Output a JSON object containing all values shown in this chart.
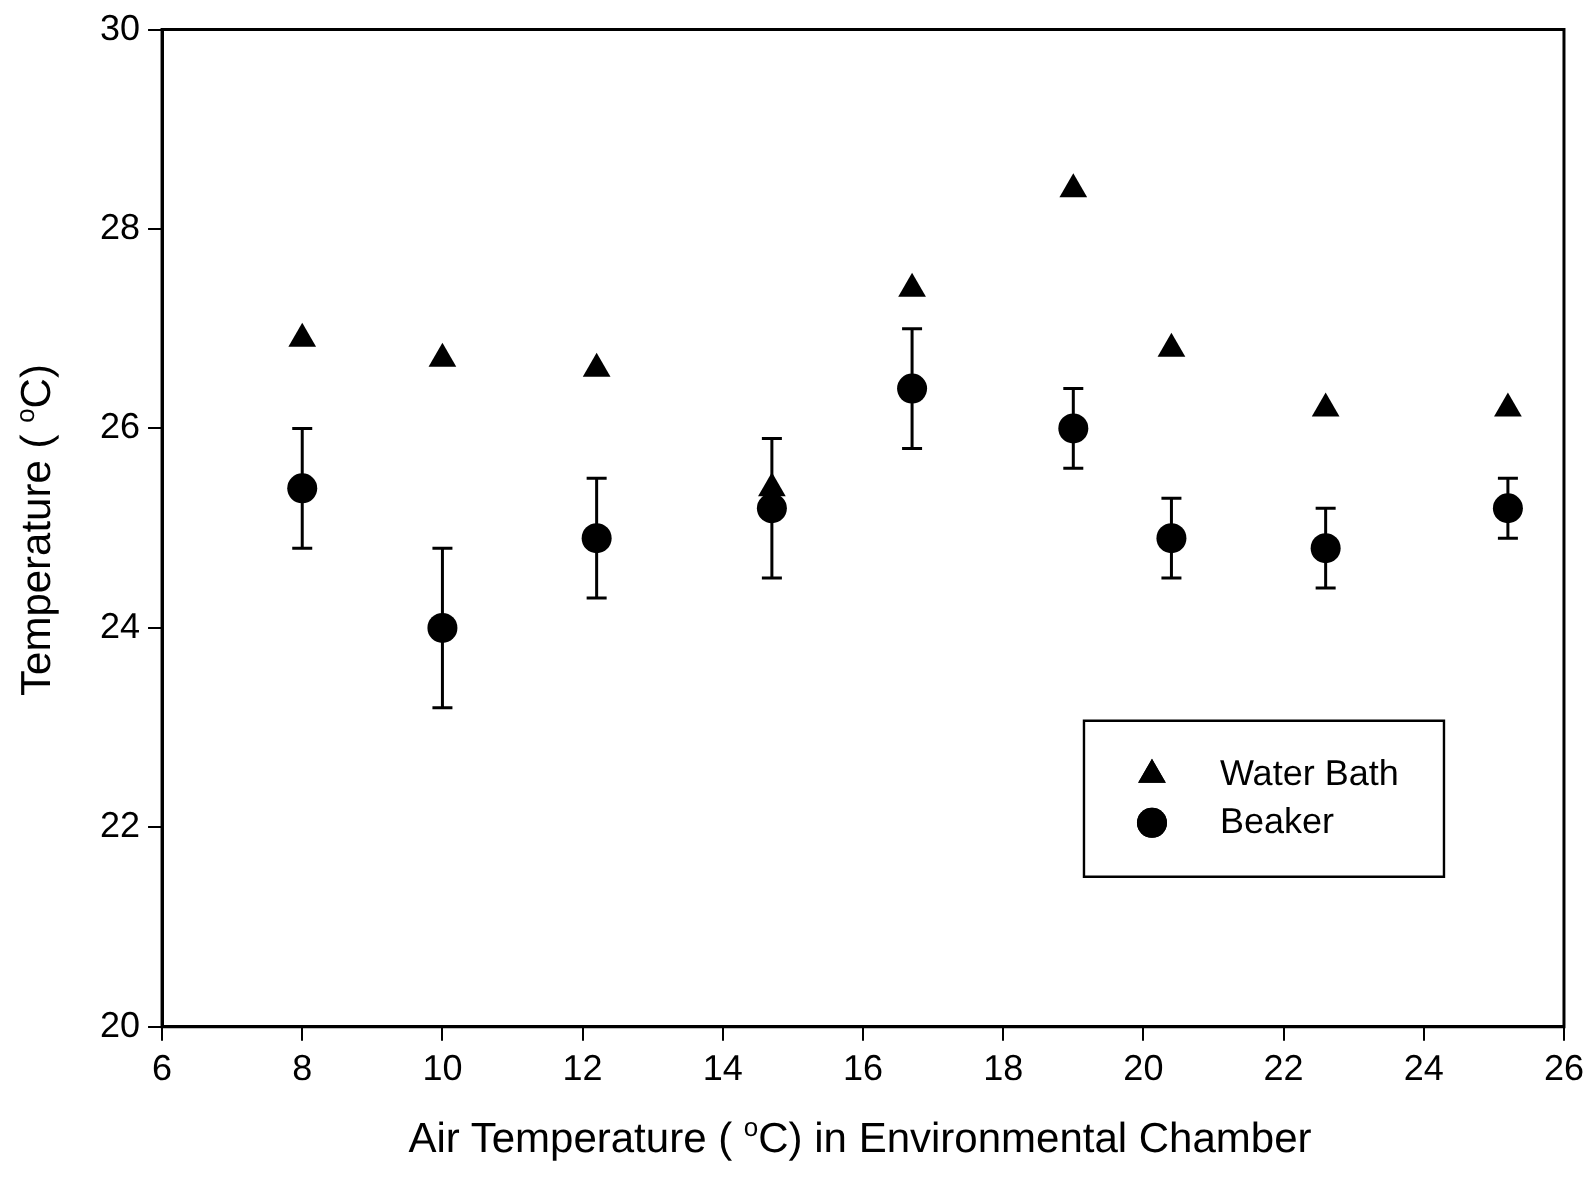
{
  "chart_data": {
    "type": "scatter",
    "xlabel": "Air Temperature ( $^{o}$C) in Environmental Chamber",
    "ylabel": "Temperature ( $^{o}$C)",
    "x": [
      8.0,
      10.0,
      12.2,
      14.7,
      16.7,
      19.0,
      20.4,
      22.6,
      25.2
    ],
    "series": [
      {
        "name": "Water Bath",
        "color": "#000000",
        "marker": "triangle",
        "values": [
          26.9,
          26.7,
          26.6,
          25.4,
          27.4,
          28.4,
          26.8,
          26.2,
          26.2
        ]
      },
      {
        "name": "Beaker",
        "color": "#000000",
        "marker": "circle",
        "values": [
          25.4,
          24.0,
          24.9,
          25.2,
          26.4,
          26.0,
          24.9,
          24.8,
          25.2
        ],
        "errors": [
          0.6,
          0.8,
          0.6,
          0.7,
          0.6,
          0.4,
          0.4,
          0.4,
          0.3
        ]
      }
    ],
    "xlim": [
      6,
      26
    ],
    "xticks": [
      6,
      8,
      10,
      12,
      14,
      16,
      18,
      20,
      22,
      24,
      26
    ],
    "ylim": [
      20,
      30
    ],
    "yticks": [
      20,
      22,
      24,
      26,
      28,
      30
    ],
    "grid": false,
    "legend": "bottom right"
  }
}
